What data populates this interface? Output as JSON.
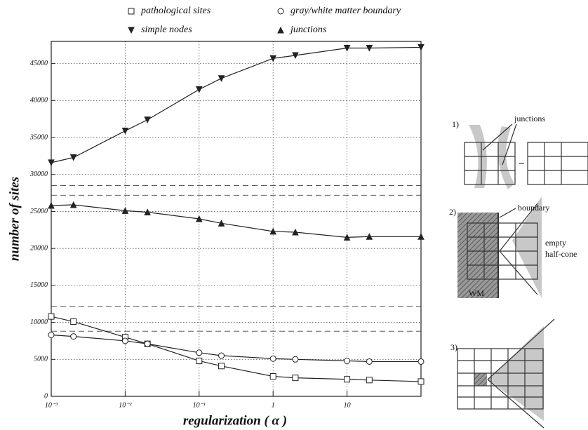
{
  "chart_data": {
    "type": "line",
    "x_label": "regularization ( α )",
    "y_label": "number of sites",
    "x": [
      0.001,
      0.002,
      0.01,
      0.02,
      0.1,
      0.2,
      1,
      2,
      10,
      20,
      100
    ],
    "series": [
      {
        "name": "pathological sites",
        "color": "#222222",
        "marker": "square-open",
        "values": [
          10800,
          10100,
          8000,
          7100,
          4800,
          4100,
          2700,
          2500,
          2300,
          2200,
          2000
        ]
      },
      {
        "name": "gray/white matter boundary",
        "color": "#222222",
        "marker": "circle-open",
        "values": [
          8300,
          8100,
          7500,
          7100,
          5900,
          5500,
          5100,
          5000,
          4800,
          4700,
          4700
        ]
      },
      {
        "name": "simple nodes",
        "color": "#222222",
        "marker": "triangle-down",
        "values": [
          31600,
          32300,
          35900,
          37400,
          41500,
          43000,
          45700,
          46100,
          47100,
          47100,
          47200
        ]
      },
      {
        "name": "junctions",
        "color": "#222222",
        "marker": "triangle-up",
        "values": [
          25800,
          25900,
          25100,
          24900,
          24000,
          23400,
          22300,
          22200,
          21500,
          21600,
          21600
        ]
      }
    ],
    "xscale": "log",
    "xlim": [
      0.001,
      100
    ],
    "xticks": [
      {
        "value": 0.001,
        "label": "10⁻³"
      },
      {
        "value": 0.01,
        "label": "10⁻²"
      },
      {
        "value": 0.1,
        "label": "10⁻¹"
      },
      1,
      10
    ],
    "ylim": [
      0,
      48000
    ],
    "yticks": [
      0,
      5000,
      10000,
      15000,
      20000,
      25000,
      30000,
      35000,
      40000,
      45000
    ],
    "hlines": [
      28500,
      27200,
      12200,
      8800
    ],
    "grid": true,
    "legend": "top"
  },
  "diagrams": {
    "panel1": {
      "number": "1)",
      "label": "junctions"
    },
    "panel2": {
      "number": "2)",
      "boundary": "boundary",
      "region": "empty",
      "region2": "half-cone",
      "wm": "WM"
    },
    "panel3": {
      "number": "3)"
    }
  }
}
